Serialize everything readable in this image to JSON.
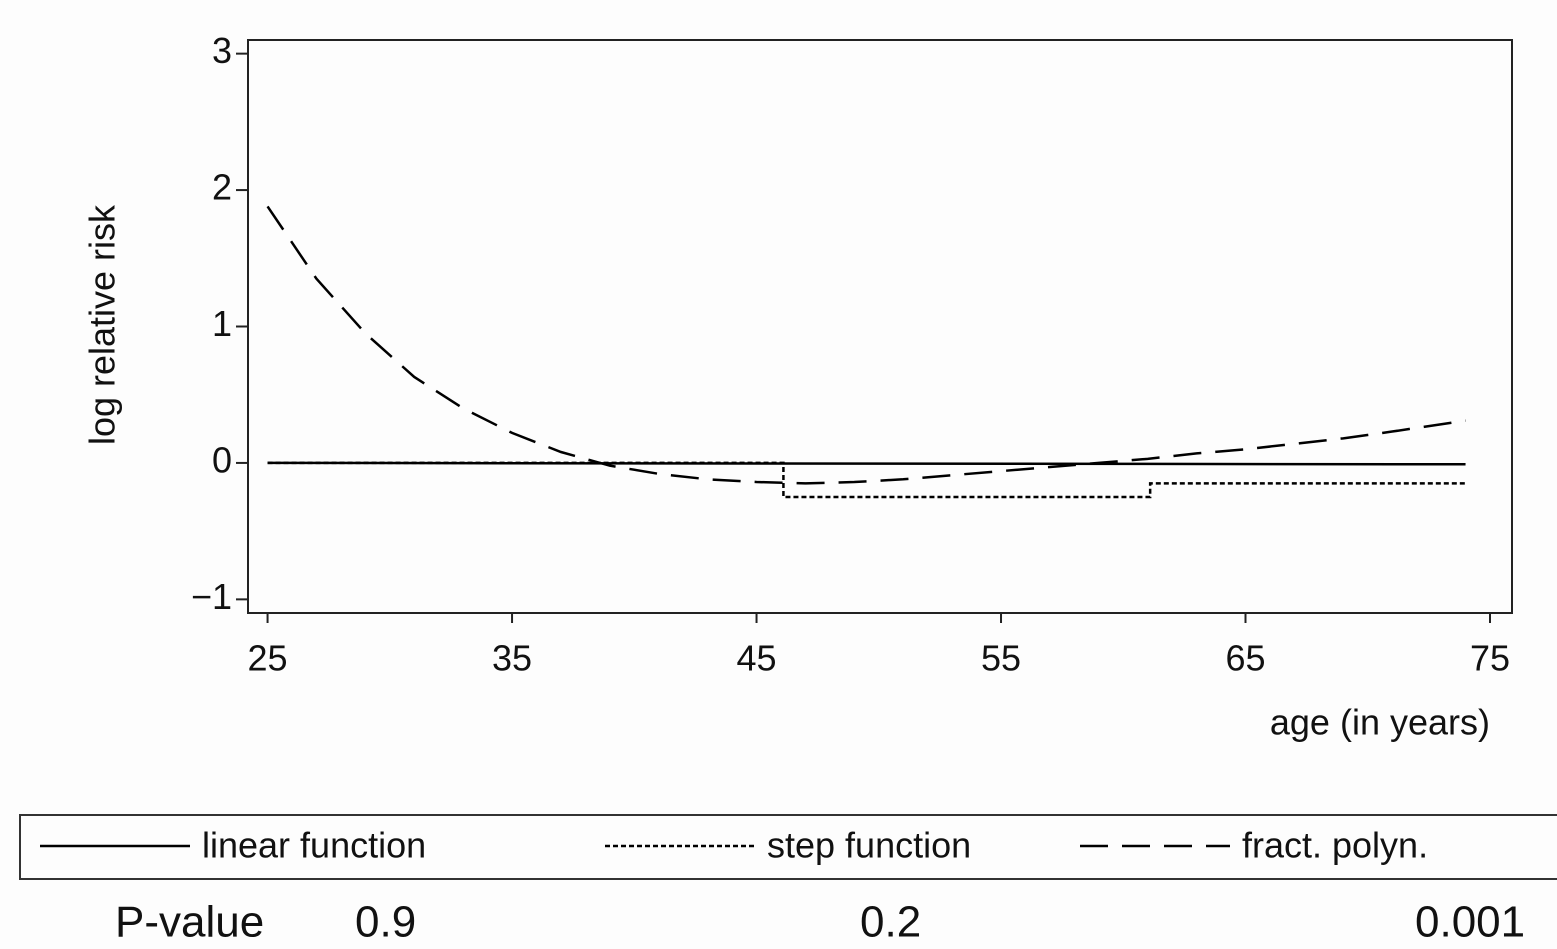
{
  "chart_data": {
    "type": "line",
    "y_label": "log relative risk",
    "x_label": "age (in years)",
    "xlim": [
      24.2,
      75.9
    ],
    "ylim": [
      -1.1,
      3.1
    ],
    "xticks": [
      25,
      35,
      45,
      55,
      65,
      75
    ],
    "yticks": [
      {
        "value": -1,
        "label": "−1"
      },
      0,
      1,
      2,
      3
    ],
    "series": [
      {
        "name": "linear function",
        "color": "#000000",
        "dash": "solid",
        "x": [
          25,
          74
        ],
        "values": [
          0,
          -0.01
        ]
      },
      {
        "name": "step function",
        "color": "#000000",
        "dash": "dotted",
        "x": [
          25,
          46.1,
          46.1,
          61.1,
          61.1,
          74
        ],
        "values": [
          0,
          0,
          -0.25,
          -0.25,
          -0.15,
          -0.15
        ]
      },
      {
        "name": "fract. polyn.",
        "color": "#000000",
        "dash": "dashed",
        "x": [
          25,
          27,
          29,
          31,
          33,
          35,
          37,
          39,
          41,
          43,
          45,
          47,
          49,
          51,
          53,
          55,
          57,
          59,
          61,
          63,
          65,
          67,
          69,
          71,
          74
        ],
        "values": [
          1.88,
          1.35,
          0.95,
          0.63,
          0.4,
          0.22,
          0.08,
          -0.02,
          -0.08,
          -0.12,
          -0.14,
          -0.15,
          -0.14,
          -0.12,
          -0.09,
          -0.06,
          -0.03,
          0.0,
          0.03,
          0.07,
          0.1,
          0.14,
          0.18,
          0.23,
          0.31
        ]
      }
    ],
    "p_value_label": "P-value",
    "p_values": [
      0.9,
      0.2,
      0.001
    ]
  }
}
